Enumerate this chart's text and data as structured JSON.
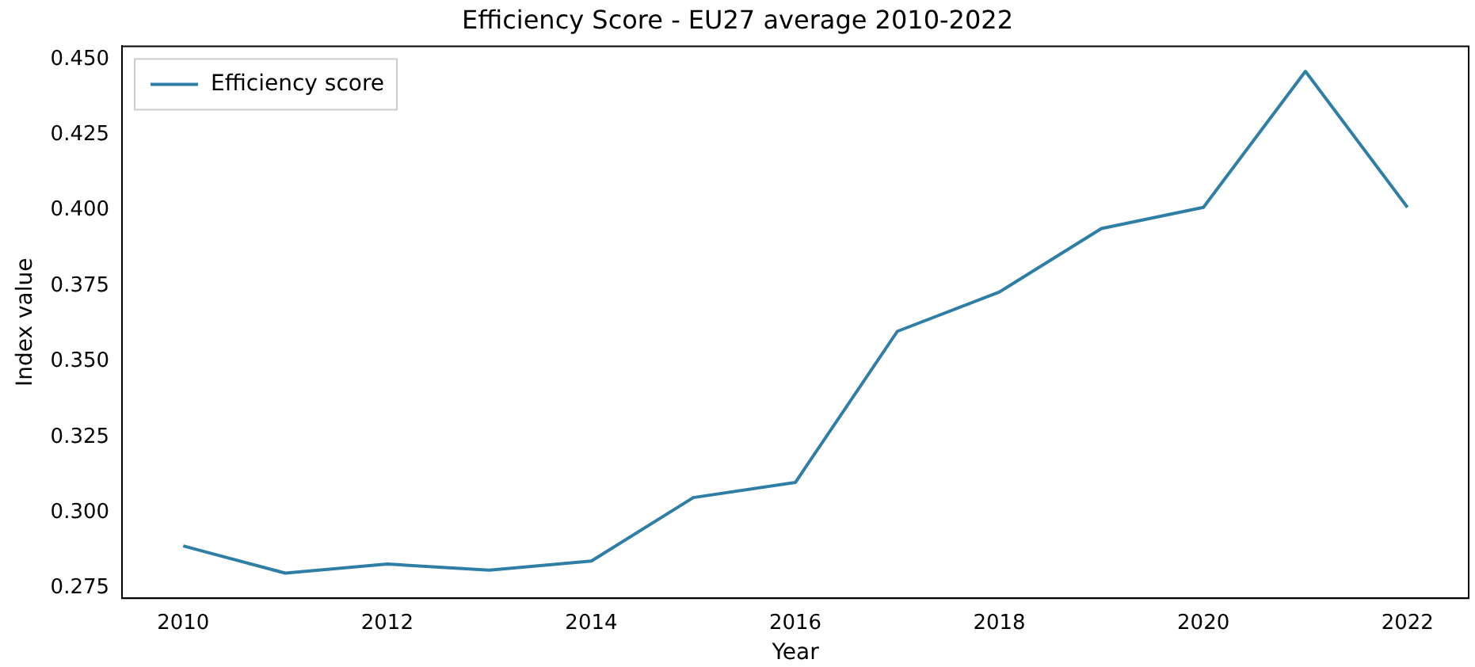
{
  "chart_data": {
    "type": "line",
    "title": "Efficiency Score - EU27 average 2010-2022",
    "xlabel": "Year",
    "ylabel": "Index value",
    "x": [
      2010,
      2011,
      2012,
      2013,
      2014,
      2015,
      2016,
      2017,
      2018,
      2019,
      2020,
      2021,
      2022
    ],
    "series": [
      {
        "name": "Efficiency score",
        "color": "#2e7ea6",
        "values": [
          0.289,
          0.28,
          0.283,
          0.281,
          0.284,
          0.305,
          0.31,
          0.36,
          0.373,
          0.394,
          0.401,
          0.446,
          0.401
        ]
      }
    ],
    "xlim": [
      2009.4,
      2022.6
    ],
    "xticks": [
      2010,
      2012,
      2014,
      2016,
      2018,
      2020,
      2022
    ],
    "ylim": [
      0.2717,
      0.4543
    ],
    "yticks": [
      {
        "value": 0.275,
        "label": "0.275"
      },
      {
        "value": 0.3,
        "label": "0.300"
      },
      {
        "value": 0.325,
        "label": "0.325"
      },
      {
        "value": 0.35,
        "label": "0.350"
      },
      {
        "value": 0.375,
        "label": "0.375"
      },
      {
        "value": 0.4,
        "label": "0.400"
      },
      {
        "value": 0.425,
        "label": "0.425"
      },
      {
        "value": 0.45,
        "label": "0.450"
      }
    ],
    "grid": false,
    "legend": "top left",
    "marker": "none",
    "line_style": "solid"
  }
}
